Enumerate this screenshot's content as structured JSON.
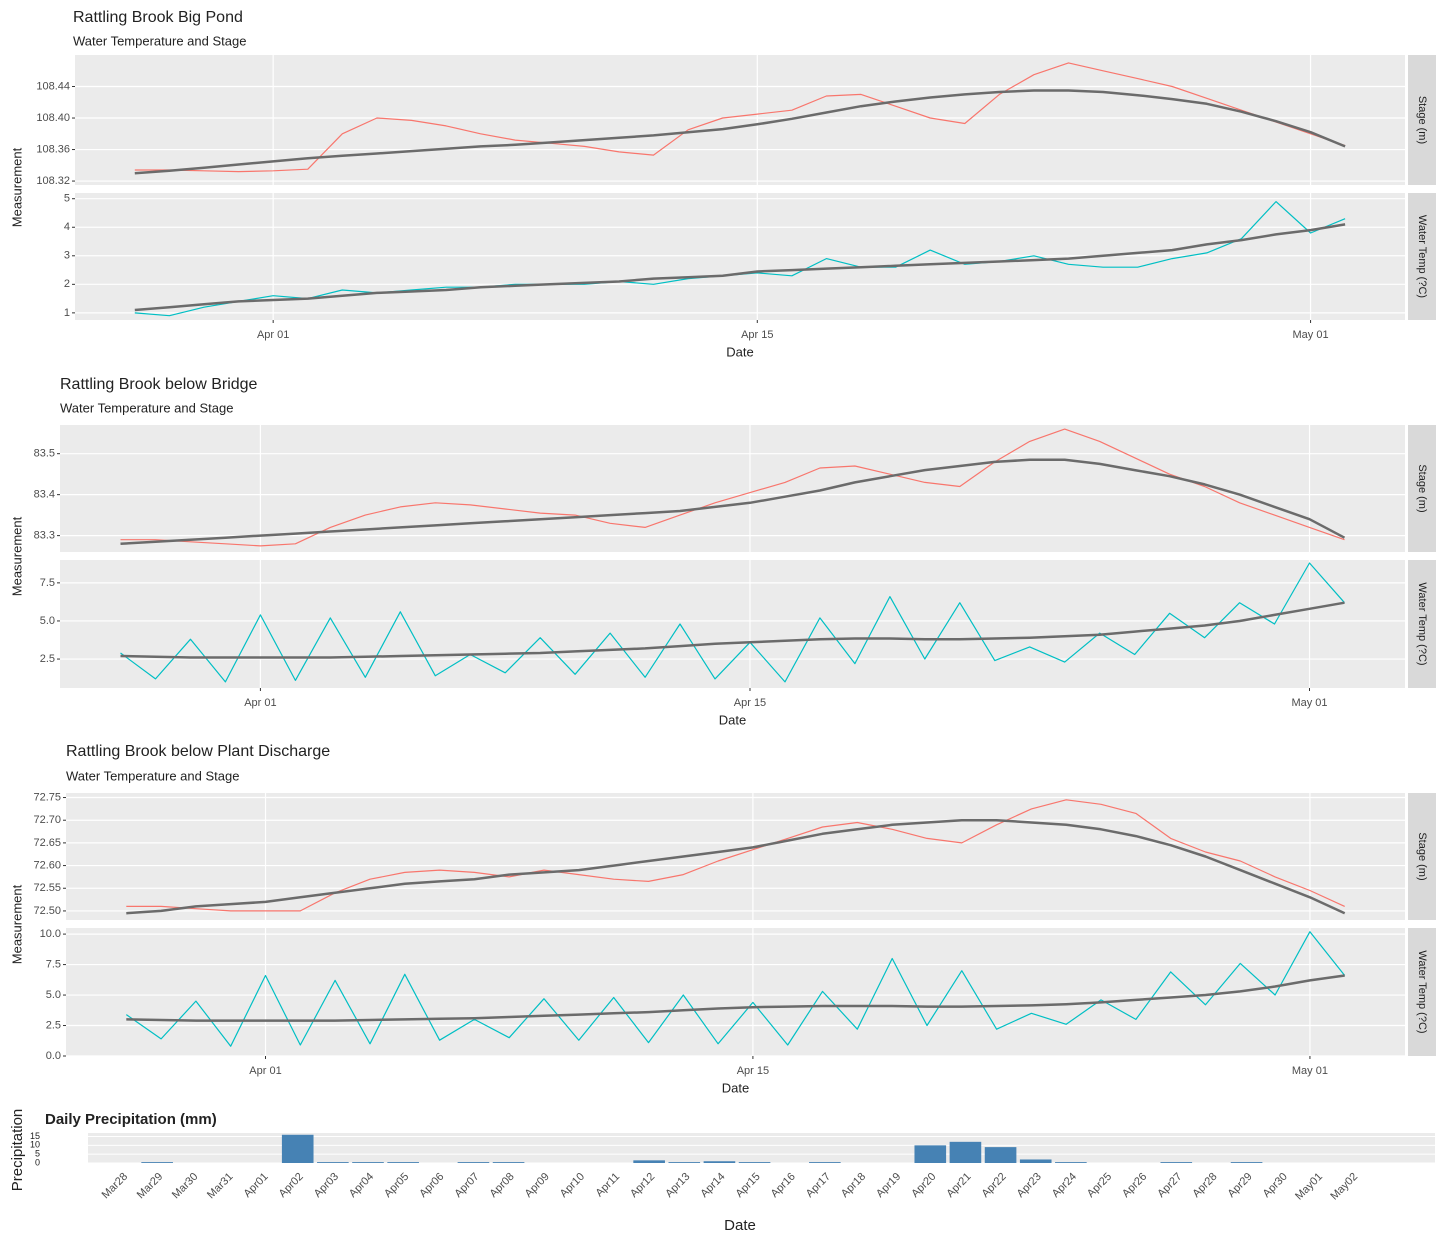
{
  "chart_data": [
    {
      "type": "line",
      "title": "Rattling Brook Big Pond",
      "subtitle": "Water Temperature and Stage",
      "xlabel": "Date",
      "ylabel": "Measurement",
      "x": [
        "Mar 28",
        "Mar 29",
        "Mar 30",
        "Mar 31",
        "Apr 01",
        "Apr 02",
        "Apr 03",
        "Apr 04",
        "Apr 05",
        "Apr 06",
        "Apr 07",
        "Apr 08",
        "Apr 09",
        "Apr 10",
        "Apr 11",
        "Apr 12",
        "Apr 13",
        "Apr 14",
        "Apr 15",
        "Apr 16",
        "Apr 17",
        "Apr 18",
        "Apr 19",
        "Apr 20",
        "Apr 21",
        "Apr 22",
        "Apr 23",
        "Apr 24",
        "Apr 25",
        "Apr 26",
        "Apr 27",
        "Apr 28",
        "Apr 29",
        "Apr 30",
        "May 01",
        "May 02"
      ],
      "xlim": [
        "Mar 28",
        "May 02"
      ],
      "xticks": [
        "Apr 01",
        "Apr 15",
        "May 01"
      ],
      "grid": true,
      "panels": [
        {
          "strip": "Stage (m)",
          "ylim": [
            108.315,
            108.48
          ],
          "yticks": [
            108.32,
            108.36,
            {
              "value": 108.4,
              "label": "108.40"
            },
            108.44
          ],
          "series": [
            {
              "color": "#f8766d",
              "values": [
                108.334,
                108.334,
                108.333,
                108.332,
                108.333,
                108.335,
                108.38,
                108.4,
                108.397,
                108.39,
                108.38,
                108.372,
                108.368,
                108.364,
                108.357,
                108.353,
                108.385,
                108.4,
                108.405,
                108.41,
                108.428,
                108.43,
                108.415,
                108.4,
                108.393,
                108.43,
                108.455,
                108.47,
                108.46,
                108.45,
                108.44,
                108.425,
                108.41,
                108.395,
                108.38,
                108.365
              ]
            },
            {
              "color": "#6b6b6b",
              "values": [
                108.33,
                108.333,
                108.337,
                108.341,
                108.345,
                108.349,
                108.352,
                108.355,
                108.358,
                108.361,
                108.364,
                108.366,
                108.369,
                108.372,
                108.375,
                108.378,
                108.382,
                108.386,
                108.392,
                108.399,
                108.407,
                108.415,
                108.421,
                108.426,
                108.43,
                108.433,
                108.435,
                108.435,
                108.433,
                108.429,
                108.424,
                108.418,
                108.408,
                108.396,
                108.382,
                108.364
              ]
            }
          ]
        },
        {
          "strip": "Water Temp (?C)",
          "ylim": [
            0.75,
            5.2
          ],
          "yticks": [
            1,
            2,
            3,
            4,
            5
          ],
          "series": [
            {
              "color": "#00bfc4",
              "values": [
                1.0,
                0.9,
                1.2,
                1.4,
                1.6,
                1.5,
                1.8,
                1.7,
                1.8,
                1.9,
                1.9,
                2.0,
                2.0,
                2.0,
                2.1,
                2.0,
                2.2,
                2.3,
                2.4,
                2.3,
                2.9,
                2.6,
                2.6,
                3.2,
                2.7,
                2.8,
                3.0,
                2.7,
                2.6,
                2.6,
                2.9,
                3.1,
                3.6,
                4.9,
                3.8,
                4.3
              ]
            },
            {
              "color": "#6b6b6b",
              "values": [
                1.1,
                1.2,
                1.3,
                1.4,
                1.45,
                1.5,
                1.6,
                1.7,
                1.75,
                1.8,
                1.9,
                1.95,
                2.0,
                2.05,
                2.1,
                2.2,
                2.25,
                2.3,
                2.45,
                2.5,
                2.55,
                2.6,
                2.65,
                2.7,
                2.75,
                2.8,
                2.85,
                2.9,
                3.0,
                3.1,
                3.2,
                3.4,
                3.55,
                3.75,
                3.9,
                4.1
              ]
            }
          ]
        }
      ]
    },
    {
      "type": "line",
      "title": "Rattling Brook below Bridge",
      "subtitle": "Water Temperature and Stage",
      "xlabel": "Date",
      "ylabel": "Measurement",
      "x": [
        "Mar 28",
        "Mar 29",
        "Mar 30",
        "Mar 31",
        "Apr 01",
        "Apr 02",
        "Apr 03",
        "Apr 04",
        "Apr 05",
        "Apr 06",
        "Apr 07",
        "Apr 08",
        "Apr 09",
        "Apr 10",
        "Apr 11",
        "Apr 12",
        "Apr 13",
        "Apr 14",
        "Apr 15",
        "Apr 16",
        "Apr 17",
        "Apr 18",
        "Apr 19",
        "Apr 20",
        "Apr 21",
        "Apr 22",
        "Apr 23",
        "Apr 24",
        "Apr 25",
        "Apr 26",
        "Apr 27",
        "Apr 28",
        "Apr 29",
        "Apr 30",
        "May 01",
        "May 02"
      ],
      "xlim": [
        "Mar 28",
        "May 02"
      ],
      "xticks": [
        "Apr 01",
        "Apr 15",
        "May 01"
      ],
      "grid": true,
      "panels": [
        {
          "strip": "Stage (m)",
          "ylim": [
            83.26,
            83.57
          ],
          "yticks": [
            83.3,
            83.4,
            83.5
          ],
          "series": [
            {
              "color": "#f8766d",
              "values": [
                83.29,
                83.29,
                83.285,
                83.28,
                83.275,
                83.28,
                83.32,
                83.35,
                83.37,
                83.38,
                83.375,
                83.365,
                83.355,
                83.35,
                83.33,
                83.32,
                83.35,
                83.38,
                83.405,
                83.43,
                83.465,
                83.47,
                83.45,
                83.43,
                83.42,
                83.48,
                83.53,
                83.56,
                83.53,
                83.49,
                83.45,
                83.42,
                83.38,
                83.35,
                83.32,
                83.29
              ]
            },
            {
              "color": "#6b6b6b",
              "values": [
                83.28,
                83.285,
                83.29,
                83.295,
                83.3,
                83.305,
                83.31,
                83.315,
                83.32,
                83.325,
                83.33,
                83.335,
                83.34,
                83.345,
                83.35,
                83.355,
                83.36,
                83.37,
                83.38,
                83.395,
                83.41,
                83.43,
                83.445,
                83.46,
                83.47,
                83.48,
                83.485,
                83.485,
                83.475,
                83.46,
                83.445,
                83.425,
                83.4,
                83.37,
                83.34,
                83.295
              ]
            }
          ]
        },
        {
          "strip": "Water Temp (?C)",
          "ylim": [
            0.6,
            9.0
          ],
          "yticks": [
            2.5,
            {
              "value": 5,
              "label": "5.0"
            },
            7.5
          ],
          "series": [
            {
              "color": "#00bfc4",
              "values": [
                2.9,
                1.2,
                3.8,
                1.0,
                5.4,
                1.1,
                5.2,
                1.3,
                5.6,
                1.4,
                2.8,
                1.6,
                3.9,
                1.5,
                4.2,
                1.3,
                4.8,
                1.2,
                3.6,
                1.0,
                5.2,
                2.2,
                6.6,
                2.5,
                6.2,
                2.4,
                3.3,
                2.3,
                4.2,
                2.8,
                5.5,
                3.9,
                6.2,
                4.8,
                8.8,
                6.2
              ]
            },
            {
              "color": "#6b6b6b",
              "values": [
                2.7,
                2.65,
                2.6,
                2.6,
                2.6,
                2.6,
                2.6,
                2.65,
                2.7,
                2.75,
                2.8,
                2.85,
                2.9,
                3.0,
                3.1,
                3.2,
                3.35,
                3.5,
                3.6,
                3.7,
                3.8,
                3.85,
                3.85,
                3.8,
                3.8,
                3.85,
                3.9,
                4.0,
                4.1,
                4.3,
                4.5,
                4.7,
                5.0,
                5.4,
                5.8,
                6.2
              ]
            }
          ]
        }
      ]
    },
    {
      "type": "line",
      "title": "Rattling Brook below Plant Discharge",
      "subtitle": "Water Temperature and Stage",
      "xlabel": "Date",
      "ylabel": "Measurement",
      "x": [
        "Mar 28",
        "Mar 29",
        "Mar 30",
        "Mar 31",
        "Apr 01",
        "Apr 02",
        "Apr 03",
        "Apr 04",
        "Apr 05",
        "Apr 06",
        "Apr 07",
        "Apr 08",
        "Apr 09",
        "Apr 10",
        "Apr 11",
        "Apr 12",
        "Apr 13",
        "Apr 14",
        "Apr 15",
        "Apr 16",
        "Apr 17",
        "Apr 18",
        "Apr 19",
        "Apr 20",
        "Apr 21",
        "Apr 22",
        "Apr 23",
        "Apr 24",
        "Apr 25",
        "Apr 26",
        "Apr 27",
        "Apr 28",
        "Apr 29",
        "Apr 30",
        "May 01",
        "May 02"
      ],
      "xlim": [
        "Mar 28",
        "May 02"
      ],
      "xticks": [
        "Apr 01",
        "Apr 15",
        "May 01"
      ],
      "grid": true,
      "panels": [
        {
          "strip": "Stage (m)",
          "ylim": [
            72.48,
            72.76
          ],
          "yticks": [
            {
              "value": 72.5,
              "label": "72.50"
            },
            72.55,
            {
              "value": 72.6,
              "label": "72.60"
            },
            72.65,
            {
              "value": 72.7,
              "label": "72.70"
            },
            72.75
          ],
          "series": [
            {
              "color": "#f8766d",
              "values": [
                72.51,
                72.51,
                72.505,
                72.5,
                72.5,
                72.5,
                72.54,
                72.57,
                72.585,
                72.59,
                72.585,
                72.575,
                72.59,
                72.58,
                72.57,
                72.565,
                72.58,
                72.61,
                72.635,
                72.66,
                72.685,
                72.695,
                72.68,
                72.66,
                72.65,
                72.69,
                72.725,
                72.745,
                72.735,
                72.715,
                72.66,
                72.63,
                72.61,
                72.575,
                72.545,
                72.51
              ]
            },
            {
              "color": "#6b6b6b",
              "values": [
                72.495,
                72.5,
                72.51,
                72.515,
                72.52,
                72.53,
                72.54,
                72.55,
                72.56,
                72.565,
                72.57,
                72.58,
                72.585,
                72.59,
                72.6,
                72.61,
                72.62,
                72.63,
                72.64,
                72.655,
                72.67,
                72.68,
                72.69,
                72.695,
                72.7,
                72.7,
                72.695,
                72.69,
                72.68,
                72.665,
                72.645,
                72.62,
                72.59,
                72.56,
                72.53,
                72.495
              ]
            }
          ]
        },
        {
          "strip": "Water Temp (?C)",
          "ylim": [
            0,
            10.5
          ],
          "yticks": [
            {
              "value": 0,
              "label": "0.0"
            },
            2.5,
            {
              "value": 5,
              "label": "5.0"
            },
            7.5,
            {
              "value": 10,
              "label": "10.0"
            }
          ],
          "series": [
            {
              "color": "#00bfc4",
              "values": [
                3.4,
                1.4,
                4.5,
                0.8,
                6.6,
                0.9,
                6.2,
                1.0,
                6.7,
                1.3,
                3.0,
                1.5,
                4.7,
                1.3,
                4.8,
                1.1,
                5.0,
                1.0,
                4.4,
                0.9,
                5.3,
                2.2,
                8.0,
                2.5,
                7.0,
                2.2,
                3.5,
                2.6,
                4.6,
                3.0,
                6.9,
                4.2,
                7.6,
                5.0,
                10.2,
                6.6
              ]
            },
            {
              "color": "#6b6b6b",
              "values": [
                3.0,
                2.95,
                2.9,
                2.9,
                2.9,
                2.9,
                2.9,
                2.95,
                3.0,
                3.05,
                3.1,
                3.2,
                3.3,
                3.4,
                3.5,
                3.6,
                3.75,
                3.9,
                4.0,
                4.05,
                4.1,
                4.1,
                4.1,
                4.05,
                4.05,
                4.1,
                4.15,
                4.25,
                4.4,
                4.6,
                4.8,
                5.0,
                5.3,
                5.7,
                6.2,
                6.6
              ]
            }
          ]
        }
      ]
    },
    {
      "type": "bar",
      "title": "Daily Precipitation (mm)",
      "xlabel": "Date",
      "ylabel": "Precipitation",
      "color": "#4682b4",
      "categories": [
        "Mar28",
        "Mar29",
        "Mar30",
        "Mar31",
        "Apr01",
        "Apr02",
        "Apr03",
        "Apr04",
        "Apr05",
        "Apr06",
        "Apr07",
        "Apr08",
        "Apr09",
        "Apr10",
        "Apr11",
        "Apr12",
        "Apr13",
        "Apr14",
        "Apr15",
        "Apr16",
        "Apr17",
        "Apr18",
        "Apr19",
        "Apr20",
        "Apr21",
        "Apr22",
        "Apr23",
        "Apr24",
        "Apr25",
        "Apr26",
        "Apr27",
        "Apr28",
        "Apr29",
        "Apr30",
        "May01",
        "May02"
      ],
      "values": [
        0,
        0.5,
        0,
        0,
        0,
        16,
        0.5,
        0.5,
        0.5,
        0,
        0.5,
        0.5,
        0,
        0,
        0,
        1.5,
        0.5,
        1,
        0.5,
        0,
        0.5,
        0,
        0,
        10,
        12,
        9,
        2,
        0.5,
        0,
        0,
        0.5,
        0,
        0.5,
        0,
        0,
        0
      ],
      "ylim": [
        0,
        17
      ],
      "yticks": [
        0,
        5,
        10,
        15
      ],
      "grid": true
    }
  ]
}
